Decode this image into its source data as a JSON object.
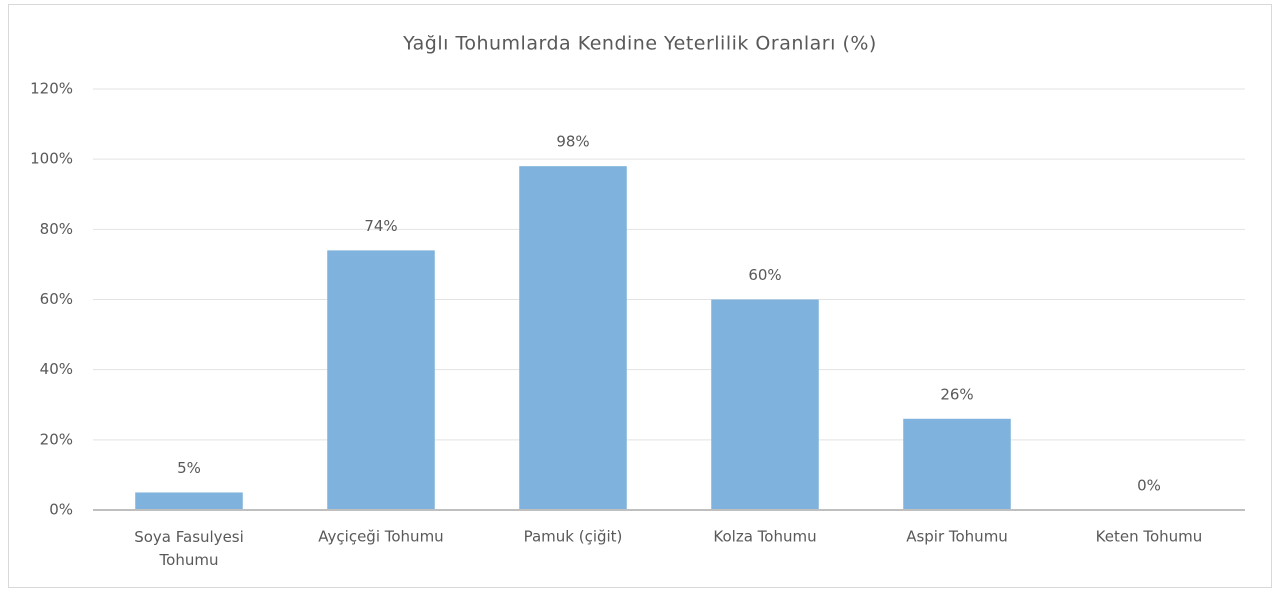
{
  "chart_data": {
    "type": "bar",
    "title": "Yağlı Tohumlarda Kendine Yeterlilik Oranları (%)",
    "categories": [
      "Soya Fasulyesi Tohumu",
      "Ayçiçeği Tohumu",
      "Pamuk (çiğit)",
      "Kolza Tohumu",
      "Aspir Tohumu",
      "Keten Tohumu"
    ],
    "values": [
      5,
      74,
      98,
      60,
      26,
      0
    ],
    "value_labels": [
      "5%",
      "74%",
      "98%",
      "60%",
      "26%",
      "0%"
    ],
    "color": "#7fb2dc",
    "ylim": [
      0,
      120
    ],
    "yticks": [
      {
        "value": 0,
        "label": "0%"
      },
      {
        "value": 20,
        "label": "20%"
      },
      {
        "value": 40,
        "label": "40%"
      },
      {
        "value": 60,
        "label": "60%"
      },
      {
        "value": 80,
        "label": "80%"
      },
      {
        "value": 100,
        "label": "100%"
      },
      {
        "value": 120,
        "label": "120%"
      }
    ],
    "grid": true
  }
}
